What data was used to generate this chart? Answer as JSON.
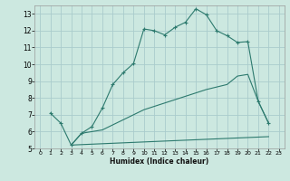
{
  "xlabel": "Humidex (Indice chaleur)",
  "background_color": "#cce8e0",
  "grid_color": "#aacccc",
  "line_color": "#2d7a6e",
  "xlim": [
    -0.5,
    23.5
  ],
  "ylim": [
    5,
    13.5
  ],
  "xticks": [
    0,
    1,
    2,
    3,
    4,
    5,
    6,
    7,
    8,
    9,
    10,
    11,
    12,
    13,
    14,
    15,
    16,
    17,
    18,
    19,
    20,
    21,
    22,
    23
  ],
  "yticks": [
    5,
    6,
    7,
    8,
    9,
    10,
    11,
    12,
    13
  ],
  "line1_x": [
    1,
    2,
    3,
    4,
    5,
    6,
    7,
    8,
    9,
    10,
    11,
    12,
    13,
    14,
    15,
    16,
    17,
    18,
    19,
    20,
    21,
    22
  ],
  "line1_y": [
    7.1,
    6.5,
    5.2,
    5.9,
    6.3,
    7.4,
    8.8,
    9.5,
    10.05,
    12.1,
    12.0,
    11.75,
    12.2,
    12.5,
    13.3,
    12.95,
    12.0,
    11.7,
    11.3,
    11.35,
    7.8,
    6.5
  ],
  "line2_x": [
    3,
    22
  ],
  "line2_y": [
    5.2,
    5.7
  ],
  "line3_x": [
    3,
    4,
    5,
    6,
    7,
    8,
    9,
    10,
    11,
    12,
    13,
    14,
    15,
    16,
    17,
    18,
    19,
    20,
    21,
    22
  ],
  "line3_y": [
    5.2,
    5.9,
    6.0,
    6.1,
    6.4,
    6.7,
    7.0,
    7.3,
    7.5,
    7.7,
    7.9,
    8.1,
    8.3,
    8.5,
    8.65,
    8.8,
    9.3,
    9.4,
    7.8,
    6.5
  ]
}
